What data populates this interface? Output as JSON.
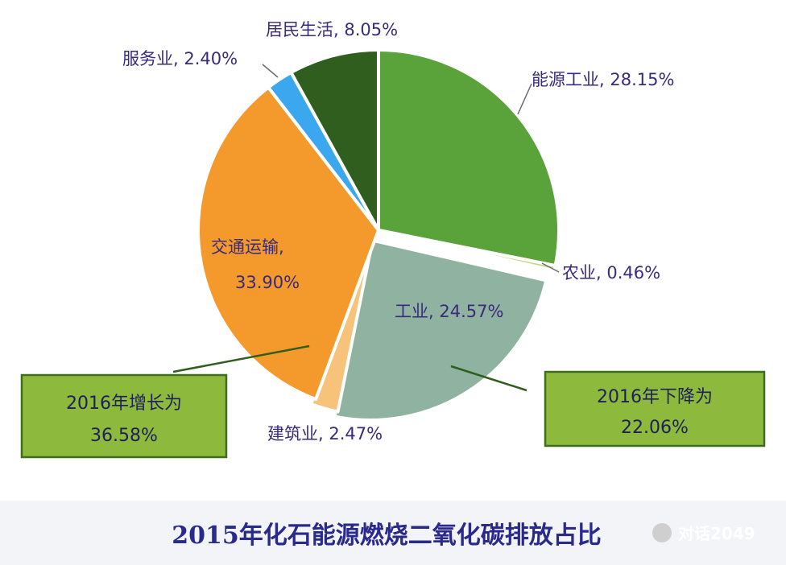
{
  "chart_data": {
    "type": "pie",
    "title": "2015年化石能源燃烧二氧化碳排放占比",
    "slices": [
      {
        "label": "能源工业",
        "value": 28.15,
        "display": "能源工业, 28.15%",
        "color": "#5aa33a"
      },
      {
        "label": "农业",
        "value": 0.46,
        "display": "农业, 0.46%",
        "color": "#c9d98a"
      },
      {
        "label": "工业",
        "value": 24.57,
        "display": "工业, 24.57%",
        "color": "#8fb3a0"
      },
      {
        "label": "建筑业",
        "value": 2.47,
        "display": "建筑业, 2.47%",
        "color": "#f7c27a"
      },
      {
        "label": "交通运输",
        "value": 33.9,
        "display_line1": "交通运输,",
        "display_line2": "33.90%",
        "color": "#f49a2c"
      },
      {
        "label": "服务业",
        "value": 2.4,
        "display": "服务业, 2.40%",
        "color": "#3aa7ee"
      },
      {
        "label": "居民生活",
        "value": 8.05,
        "display": "居民生活, 8.05%",
        "color": "#2f5e1e"
      }
    ],
    "annotations": [
      {
        "line1": "2016年增长为",
        "line2": "36.58%"
      },
      {
        "line1": "2016年下降为",
        "line2": "22.06%"
      }
    ]
  },
  "watermark": "对话2049"
}
